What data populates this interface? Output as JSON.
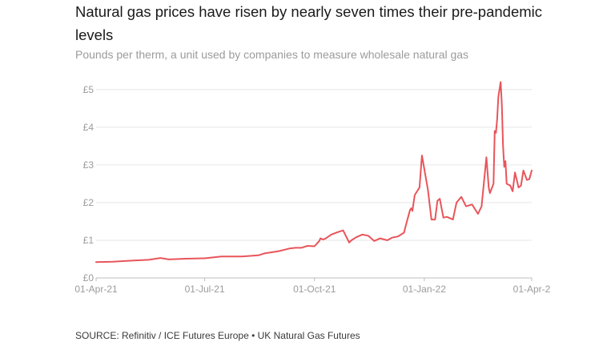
{
  "title": "Natural gas prices have risen by nearly seven times their pre-pandemic levels",
  "subtitle": "Pounds per therm, a unit used by companies to measure wholesale natural gas",
  "source": "SOURCE: Refinitiv / ICE Futures Europe • UK Natural Gas Futures",
  "colors": {
    "line": "#e8555a",
    "grid": "#e6e6e6",
    "axis": "#bdbdbd",
    "tick_text": "#9b9b9b"
  },
  "chart_data": {
    "type": "line",
    "title": "Natural gas prices have risen by nearly seven times their pre-pandemic levels",
    "subtitle": "Pounds per therm, a unit used by companies to measure wholesale natural gas",
    "xlabel": "",
    "ylabel": "",
    "x_range": [
      "2021-04-01",
      "2022-04-01"
    ],
    "ylim": [
      0,
      5.3
    ],
    "grid": true,
    "legend": "none",
    "y_ticks": [
      {
        "value": 0,
        "label": "£0"
      },
      {
        "value": 1,
        "label": "£1"
      },
      {
        "value": 2,
        "label": "£2"
      },
      {
        "value": 3,
        "label": "£3"
      },
      {
        "value": 4,
        "label": "£4"
      },
      {
        "value": 5,
        "label": "£5"
      }
    ],
    "x_ticks": [
      {
        "value": "2021-04-01",
        "label": "01-Apr-21"
      },
      {
        "value": "2021-07-01",
        "label": "01-Jul-21"
      },
      {
        "value": "2021-10-01",
        "label": "01-Oct-21"
      },
      {
        "value": "2022-01-01",
        "label": "01-Jan-22"
      },
      {
        "value": "2022-04-01",
        "label": "01-Apr-2"
      }
    ],
    "series": [
      {
        "x": [
          "2021-04-01",
          "2021-04-15",
          "2021-05-01",
          "2021-05-15",
          "2021-05-25",
          "2021-06-01",
          "2021-06-15",
          "2021-07-01",
          "2021-07-15",
          "2021-08-01",
          "2021-08-15",
          "2021-08-20",
          "2021-09-01",
          "2021-09-10",
          "2021-09-15",
          "2021-09-20",
          "2021-09-25",
          "2021-10-01",
          "2021-10-05",
          "2021-10-06",
          "2021-10-08",
          "2021-10-10",
          "2021-10-15",
          "2021-10-20",
          "2021-10-25",
          "2021-10-30",
          "2021-11-01",
          "2021-11-05",
          "2021-11-10",
          "2021-11-15",
          "2021-11-20",
          "2021-11-25",
          "2021-12-01",
          "2021-12-05",
          "2021-12-10",
          "2021-12-15",
          "2021-12-17",
          "2021-12-20",
          "2021-12-21",
          "2021-12-22",
          "2021-12-24",
          "2021-12-28",
          "2021-12-30",
          "2022-01-04",
          "2022-01-07",
          "2022-01-10",
          "2022-01-12",
          "2022-01-14",
          "2022-01-17",
          "2022-01-20",
          "2022-01-25",
          "2022-01-28",
          "2022-02-01",
          "2022-02-05",
          "2022-02-10",
          "2022-02-15",
          "2022-02-18",
          "2022-02-22",
          "2022-02-24",
          "2022-02-25",
          "2022-02-28",
          "2022-03-01",
          "2022-03-02",
          "2022-03-03",
          "2022-03-04",
          "2022-03-06",
          "2022-03-07",
          "2022-03-08",
          "2022-03-09",
          "2022-03-10",
          "2022-03-11",
          "2022-03-14",
          "2022-03-16",
          "2022-03-18",
          "2022-03-21",
          "2022-03-23",
          "2022-03-25",
          "2022-03-28",
          "2022-03-30",
          "2022-04-01"
        ],
        "values": [
          0.42,
          0.43,
          0.46,
          0.48,
          0.53,
          0.49,
          0.51,
          0.52,
          0.57,
          0.57,
          0.6,
          0.65,
          0.71,
          0.78,
          0.8,
          0.8,
          0.85,
          0.84,
          0.98,
          1.05,
          1.02,
          1.04,
          1.15,
          1.21,
          1.26,
          0.94,
          1.0,
          1.08,
          1.15,
          1.12,
          0.98,
          1.05,
          1.0,
          1.07,
          1.1,
          1.2,
          1.45,
          1.8,
          1.85,
          1.78,
          2.2,
          2.4,
          3.25,
          2.35,
          1.55,
          1.55,
          2.05,
          2.1,
          1.6,
          1.62,
          1.55,
          2.0,
          2.15,
          1.9,
          1.95,
          1.7,
          1.9,
          3.2,
          2.4,
          2.25,
          2.5,
          3.9,
          3.85,
          4.2,
          4.8,
          5.2,
          4.6,
          3.5,
          2.95,
          3.1,
          2.5,
          2.45,
          2.3,
          2.8,
          2.4,
          2.45,
          2.85,
          2.6,
          2.62,
          2.85
        ]
      }
    ]
  }
}
